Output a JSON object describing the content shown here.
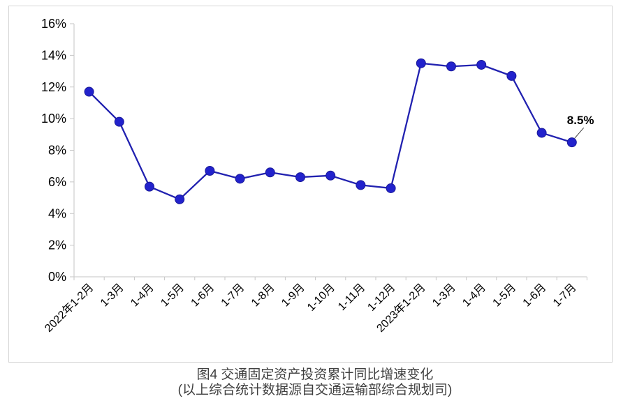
{
  "figure_label": "图4",
  "colors": {
    "line": "#2121b0",
    "marker_fill": "#2222cc",
    "marker_stroke": "#1a1a99",
    "axis": "#c6c6c6",
    "tick_label": "#000000",
    "annotation_text": "#000000",
    "annotation_leader": "#404040",
    "caption_text": "#3f3f3f",
    "border": "#d5d5d5"
  },
  "chart_data": {
    "type": "line",
    "title": "图4  交通固定资产投资累计同比增速变化",
    "subtitle": "(以上综合统计数据源自交通运输部综合规划司)",
    "series_name": "交通固定资产投资累计同比增速",
    "categories": [
      "2022年1-2月",
      "1-3月",
      "1-4月",
      "1-5月",
      "1-6月",
      "1-7月",
      "1-8月",
      "1-9月",
      "1-10月",
      "1-11月",
      "1-12月",
      "2023年1-2月",
      "1-3月",
      "1-4月",
      "1-5月",
      "1-6月",
      "1-7月"
    ],
    "values": [
      11.7,
      9.8,
      5.7,
      4.9,
      6.7,
      6.2,
      6.6,
      6.3,
      6.4,
      5.8,
      5.6,
      13.5,
      13.3,
      13.4,
      12.7,
      9.1,
      8.5
    ],
    "ylim": [
      0,
      16
    ],
    "ytick_step": 2,
    "ytick_labels": [
      "0%",
      "2%",
      "4%",
      "6%",
      "8%",
      "10%",
      "12%",
      "14%",
      "16%"
    ],
    "grid": false,
    "legend": "none",
    "xlabel": "",
    "ylabel": "",
    "annotation": {
      "text": "8.5%",
      "target_category": "1-7月",
      "target_value": 8.5
    }
  }
}
